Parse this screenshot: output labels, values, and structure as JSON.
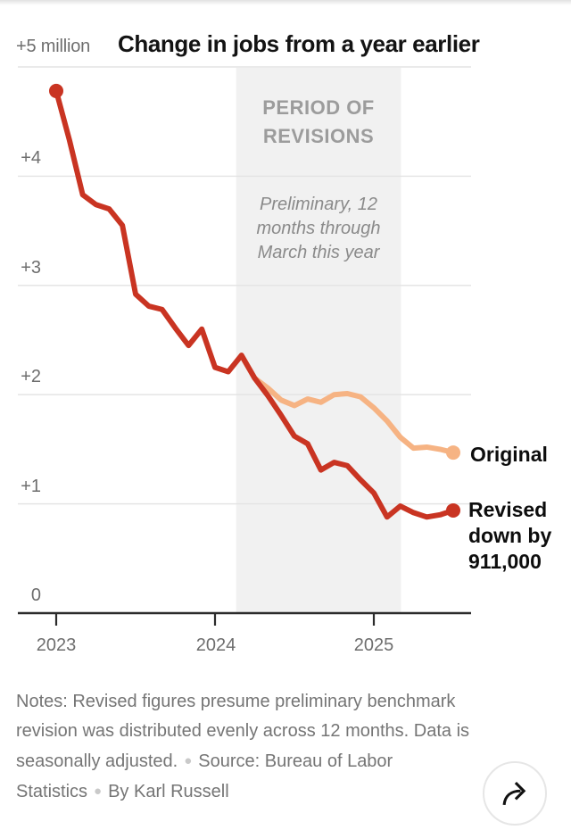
{
  "header": {
    "y_top_label": "+5 million",
    "title": "Change in jobs from a year earlier"
  },
  "chart_data": {
    "type": "line",
    "title": "Change in jobs from a year earlier",
    "unit": "millions of jobs, change from a year earlier",
    "months_start": "2023-01",
    "ylim": [
      0,
      5
    ],
    "grid": true,
    "y_ticks": [
      {
        "label": "+5 million",
        "value": 5
      },
      {
        "label": "+4",
        "value": 4
      },
      {
        "label": "+3",
        "value": 3
      },
      {
        "label": "+2",
        "value": 2
      },
      {
        "label": "+1",
        "value": 1
      },
      {
        "label": "0",
        "value": 0
      }
    ],
    "x_ticks": [
      {
        "label": "2023",
        "month": 0
      },
      {
        "label": "2024",
        "month": 12
      },
      {
        "label": "2025",
        "month": 24
      }
    ],
    "band": {
      "label": "PERIOD OF REVISIONS",
      "note": "Preliminary, 12 months through March this year",
      "start_month": 13.6,
      "end_month": 26.05
    },
    "series": [
      {
        "name": "Original",
        "color": "#f6b383",
        "start_month": 14,
        "dots": "end",
        "values": [
          2.36,
          2.15,
          2.06,
          1.95,
          1.9,
          1.96,
          1.93,
          2.0,
          2.01,
          1.98,
          1.88,
          1.76,
          1.61,
          1.51,
          1.52,
          1.5,
          1.47
        ]
      },
      {
        "name": "Revised",
        "color": "#c93422",
        "start_month": 0,
        "dots": "both",
        "values": [
          4.78,
          4.33,
          3.83,
          3.74,
          3.7,
          3.55,
          2.92,
          2.81,
          2.78,
          2.61,
          2.45,
          2.6,
          2.25,
          2.21,
          2.36,
          2.15,
          1.99,
          1.81,
          1.62,
          1.55,
          1.31,
          1.38,
          1.35,
          1.22,
          1.1,
          0.88,
          0.98,
          0.92,
          0.88,
          0.9,
          0.94
        ]
      }
    ],
    "colors": {
      "band": "#f1f1f1",
      "gridline": "#e3e3e3",
      "axis": "#2b2b2b"
    }
  },
  "band": {
    "title": "PERIOD OF\nREVISIONS",
    "subtitle": "Preliminary, 12\nmonths through\nMarch this year"
  },
  "legend": {
    "original": "Original",
    "revised": "Revised\ndown by\n911,000"
  },
  "footer": {
    "notes": "Notes: Revised figures presume preliminary benchmark revision was distributed evenly across 12 months. Data is seasonally adjusted.",
    "bullet": "●",
    "source": "Source: Bureau of Labor Statistics",
    "byline": "By Karl Russell"
  }
}
